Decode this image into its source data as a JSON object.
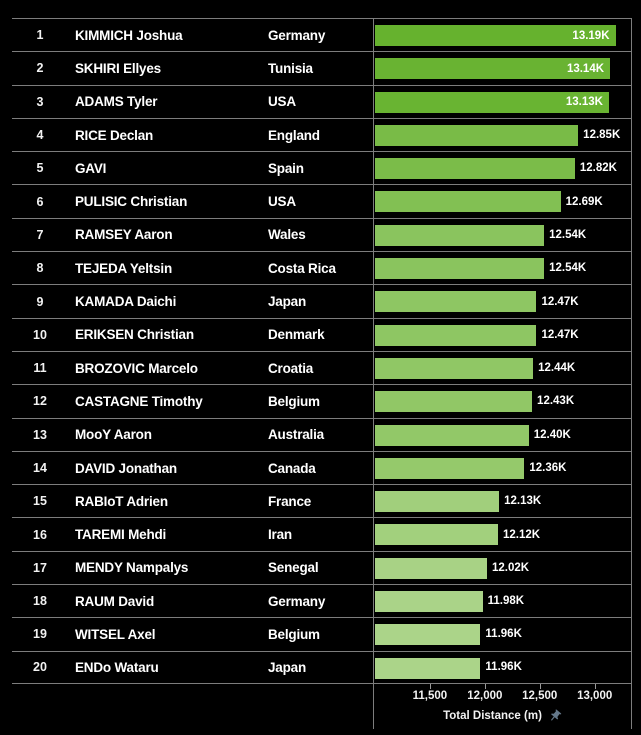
{
  "chart_data": {
    "type": "bar",
    "orientation": "horizontal",
    "title": "",
    "xlabel": "Total Distance (m)",
    "ylabel": "",
    "xlim": [
      11000,
      13340
    ],
    "grid": false,
    "legend": false,
    "xticks": [
      {
        "value": 11500,
        "label": "11,500"
      },
      {
        "value": 12000,
        "label": "12,000"
      },
      {
        "value": 12500,
        "label": "12,500"
      },
      {
        "value": 13000,
        "label": "13,000"
      }
    ],
    "rows": [
      {
        "rank": "1",
        "player": "KIMMICH Joshua",
        "country": "Germany",
        "value": 13190,
        "label": "13.19K"
      },
      {
        "rank": "2",
        "player": "SKHIRI Ellyes",
        "country": "Tunisia",
        "value": 13140,
        "label": "13.14K"
      },
      {
        "rank": "3",
        "player": "ADAMS Tyler",
        "country": "USA",
        "value": 13130,
        "label": "13.13K"
      },
      {
        "rank": "4",
        "player": "RICE Declan",
        "country": "England",
        "value": 12850,
        "label": "12.85K"
      },
      {
        "rank": "5",
        "player": "GAVI",
        "country": "Spain",
        "value": 12820,
        "label": "12.82K"
      },
      {
        "rank": "6",
        "player": "PULISIC Christian",
        "country": "USA",
        "value": 12690,
        "label": "12.69K"
      },
      {
        "rank": "7",
        "player": "RAMSEY Aaron",
        "country": "Wales",
        "value": 12540,
        "label": "12.54K"
      },
      {
        "rank": "8",
        "player": "TEJEDA Yeltsin",
        "country": "Costa Rica",
        "value": 12540,
        "label": "12.54K"
      },
      {
        "rank": "9",
        "player": "KAMADA Daichi",
        "country": "Japan",
        "value": 12470,
        "label": "12.47K"
      },
      {
        "rank": "10",
        "player": "ERIKSEN Christian",
        "country": "Denmark",
        "value": 12470,
        "label": "12.47K"
      },
      {
        "rank": "11",
        "player": "BROZOVIC Marcelo",
        "country": "Croatia",
        "value": 12440,
        "label": "12.44K"
      },
      {
        "rank": "12",
        "player": "CASTAGNE Timothy",
        "country": "Belgium",
        "value": 12430,
        "label": "12.43K"
      },
      {
        "rank": "13",
        "player": "MooY Aaron",
        "country": "Australia",
        "value": 12400,
        "label": "12.40K"
      },
      {
        "rank": "14",
        "player": "DAVID Jonathan",
        "country": "Canada",
        "value": 12360,
        "label": "12.36K"
      },
      {
        "rank": "15",
        "player": "RABIoT Adrien",
        "country": "France",
        "value": 12130,
        "label": "12.13K"
      },
      {
        "rank": "16",
        "player": "TAREMI Mehdi",
        "country": "Iran",
        "value": 12120,
        "label": "12.12K"
      },
      {
        "rank": "17",
        "player": "MENDY Nampalys",
        "country": "Senegal",
        "value": 12020,
        "label": "12.02K"
      },
      {
        "rank": "18",
        "player": "RAUM David",
        "country": "Germany",
        "value": 11980,
        "label": "11.98K"
      },
      {
        "rank": "19",
        "player": "WITSEL Axel",
        "country": "Belgium",
        "value": 11960,
        "label": "11.96K"
      },
      {
        "rank": "20",
        "player": "ENDo Wataru",
        "country": "Japan",
        "value": 11960,
        "label": "11.96K"
      }
    ],
    "colors": {
      "background": "#000000",
      "bar_max": "#66b22e",
      "bar_min": "#abd489",
      "text": "#ffffff",
      "line": "#7d7d7d",
      "tick": "#9a9a9a",
      "pin": "#64788a"
    }
  }
}
